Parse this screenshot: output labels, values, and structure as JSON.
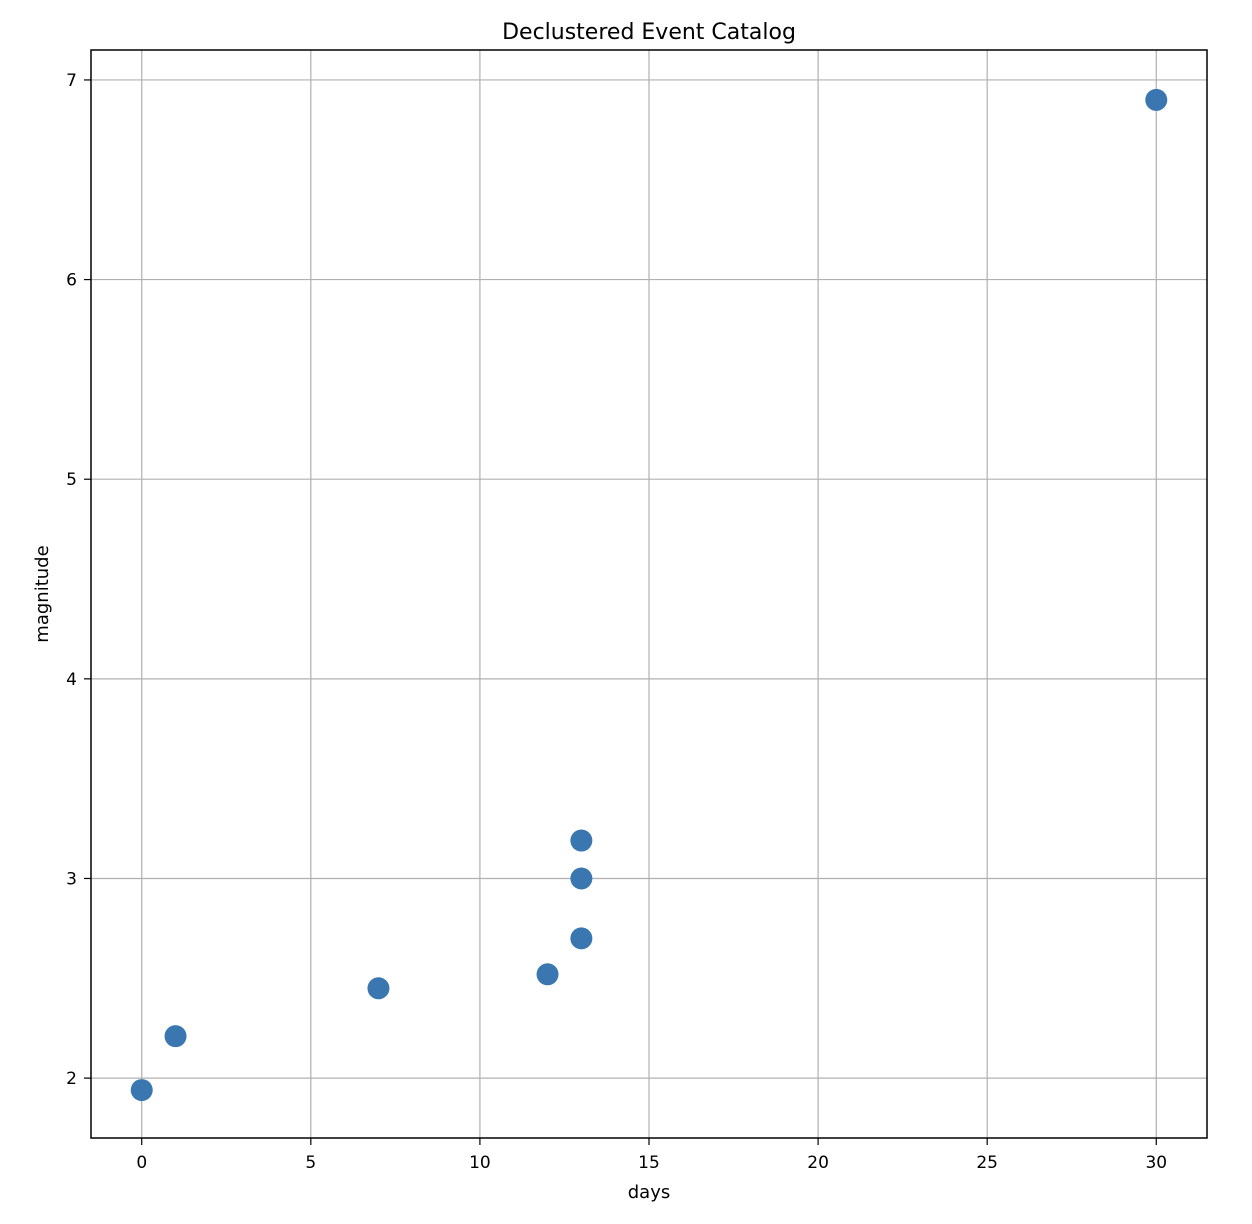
{
  "chart_data": {
    "type": "scatter",
    "title": "Declustered Event Catalog",
    "xlabel": "days",
    "ylabel": "magnitude",
    "xlim": [
      -1.5,
      31.5
    ],
    "ylim": [
      1.7,
      7.15
    ],
    "xticks": [
      0,
      5,
      10,
      15,
      20,
      25,
      30
    ],
    "yticks": [
      2,
      3,
      4,
      5,
      6,
      7
    ],
    "grid": true,
    "marker_color": "#3a76af",
    "points": [
      {
        "x": 0,
        "y": 1.94
      },
      {
        "x": 1,
        "y": 2.21
      },
      {
        "x": 7,
        "y": 2.45
      },
      {
        "x": 12,
        "y": 2.52
      },
      {
        "x": 13,
        "y": 2.7
      },
      {
        "x": 13,
        "y": 3.0
      },
      {
        "x": 13,
        "y": 3.19
      },
      {
        "x": 30,
        "y": 6.9
      }
    ]
  }
}
